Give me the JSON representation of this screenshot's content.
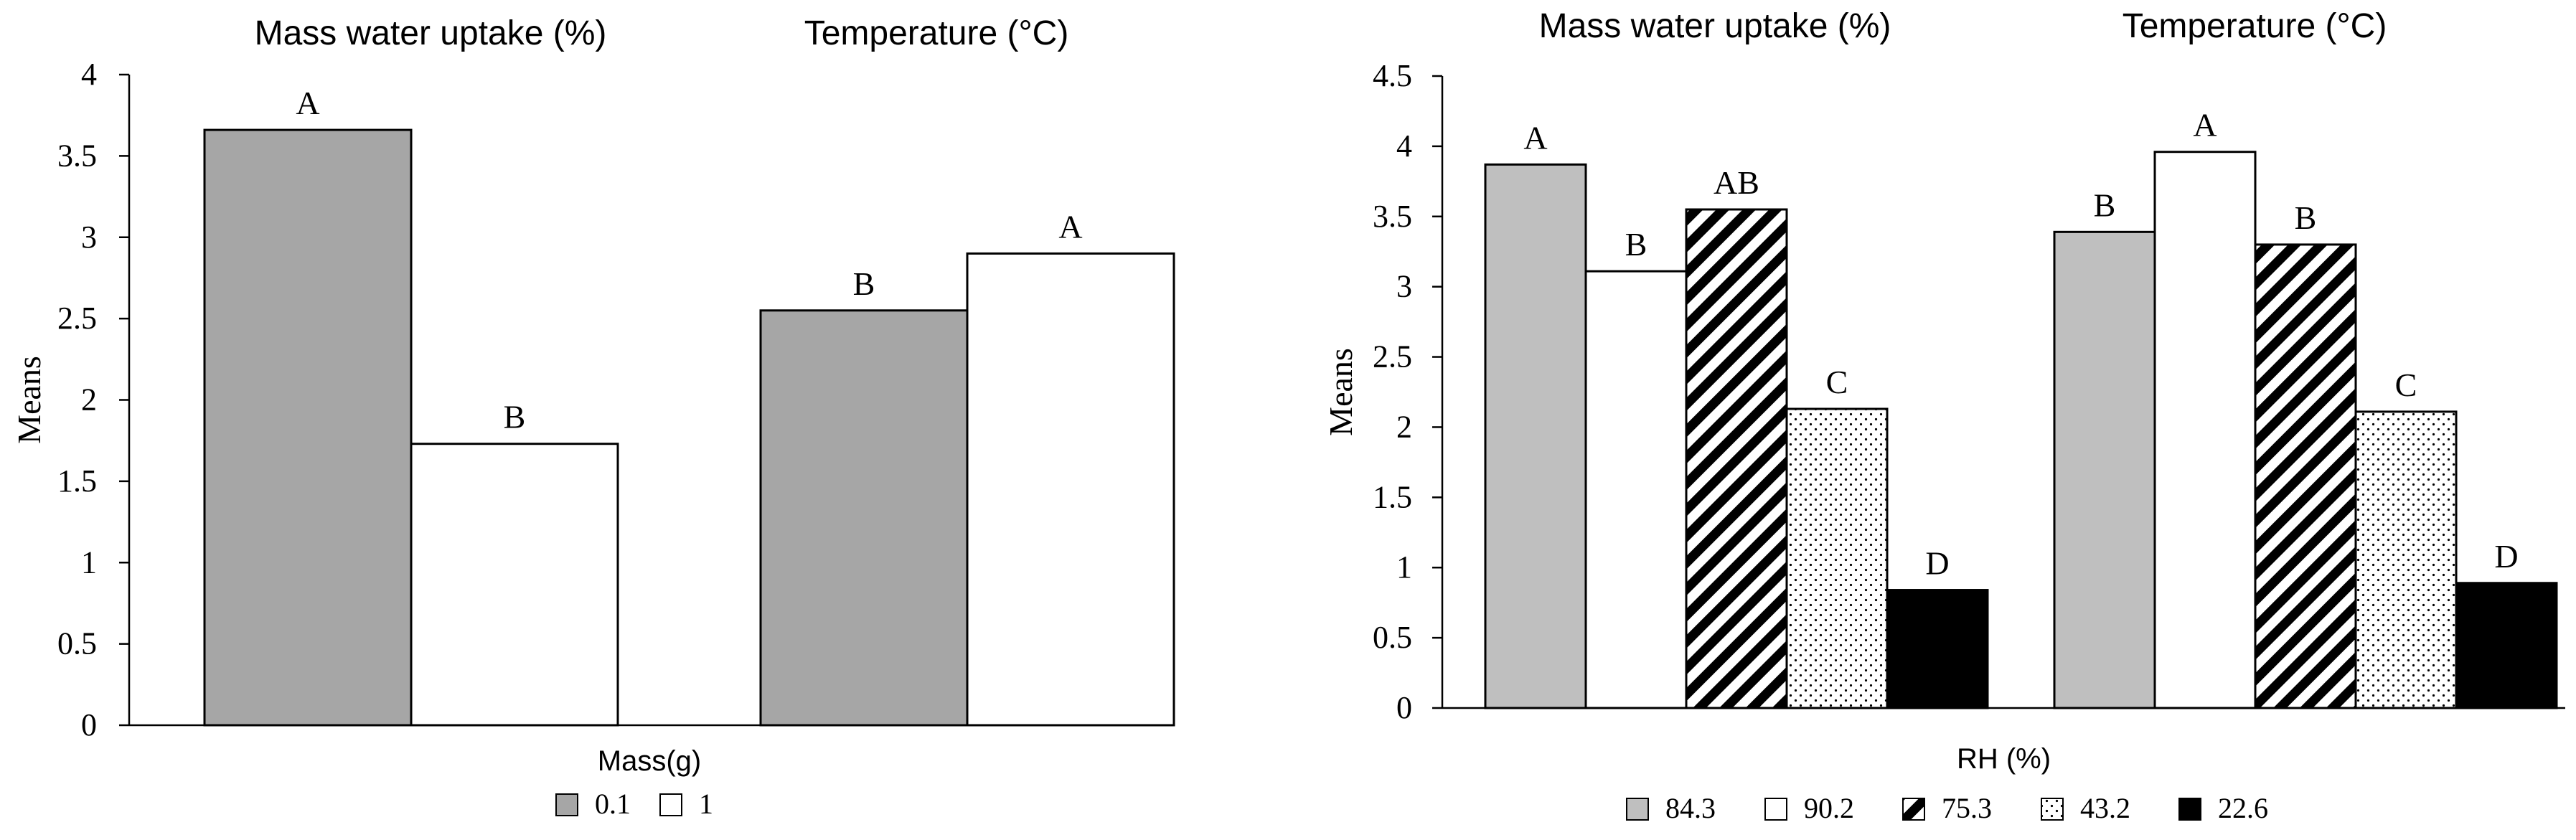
{
  "chart_data": [
    {
      "type": "bar",
      "groups": [
        "Mass water uptake (%)",
        "Temperature (°C)"
      ],
      "series": [
        {
          "name": "0.1",
          "values": [
            3.66,
            2.55
          ],
          "letters": [
            "A",
            "B"
          ],
          "fill": "gray"
        },
        {
          "name": "1",
          "values": [
            1.73,
            2.9
          ],
          "letters": [
            "B",
            "A"
          ],
          "fill": "white"
        }
      ],
      "ylabel": "Means",
      "xlabel": "Mass(g)",
      "ylim": [
        0,
        4
      ],
      "yticks": [
        "0",
        "0.5",
        "1",
        "1.5",
        "2",
        "2.5",
        "3",
        "3.5",
        "4"
      ],
      "legend": "bottom",
      "colors": {
        "gray": "#a6a6a6",
        "white": "#ffffff",
        "edge": "#000000"
      }
    },
    {
      "type": "bar",
      "groups": [
        "Mass water uptake (%)",
        "Temperature (°C)"
      ],
      "series": [
        {
          "name": "84.3",
          "values": [
            3.87,
            3.39
          ],
          "letters": [
            "A",
            "B"
          ],
          "fill": "lightgray"
        },
        {
          "name": "90.2",
          "values": [
            3.11,
            3.96
          ],
          "letters": [
            "B",
            "A"
          ],
          "fill": "white"
        },
        {
          "name": "75.3",
          "values": [
            3.55,
            3.3
          ],
          "letters": [
            "AB",
            "B"
          ],
          "fill": "hatch"
        },
        {
          "name": "43.2",
          "values": [
            2.13,
            2.11
          ],
          "letters": [
            "C",
            "C"
          ],
          "fill": "dots"
        },
        {
          "name": "22.6",
          "values": [
            0.84,
            0.89
          ],
          "letters": [
            "D",
            "D"
          ],
          "fill": "black"
        }
      ],
      "ylabel": "Means",
      "xlabel": "RH (%)",
      "ylim": [
        0,
        4.5
      ],
      "yticks": [
        "0",
        "0.5",
        "1",
        "1.5",
        "2",
        "2.5",
        "3",
        "3.5",
        "4",
        "4.5"
      ],
      "legend": "bottom",
      "colors": {
        "lightgray": "#bfbfbf",
        "white": "#ffffff",
        "black": "#000000",
        "edge": "#000000"
      }
    }
  ]
}
